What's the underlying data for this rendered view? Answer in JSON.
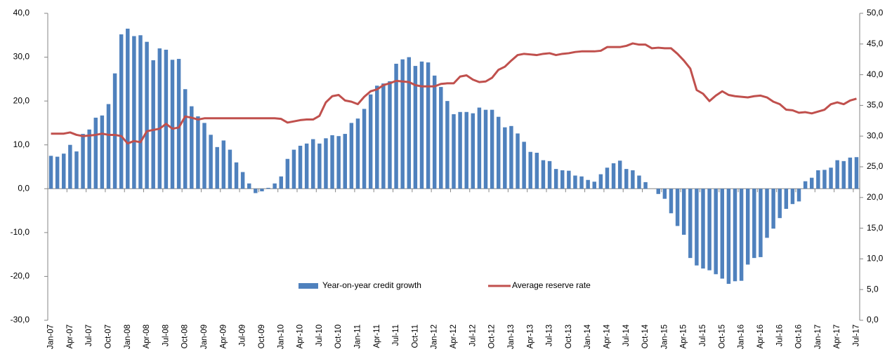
{
  "chart_data": {
    "type": "bar-line",
    "categories": [
      "Jan-07",
      null,
      null,
      "Apr-07",
      null,
      null,
      "Jul-07",
      null,
      null,
      "Oct-07",
      null,
      null,
      "Jan-08",
      null,
      null,
      "Apr-08",
      null,
      null,
      "Jul-08",
      null,
      null,
      "Oct-08",
      null,
      null,
      "Jan-09",
      null,
      null,
      "Apr-09",
      null,
      null,
      "Jul-09",
      null,
      null,
      "Oct-09",
      null,
      null,
      "Jan-10",
      null,
      null,
      "Apr-10",
      null,
      null,
      "Jul-10",
      null,
      null,
      "Oct-10",
      null,
      null,
      "Jan-11",
      null,
      null,
      "Apr-11",
      null,
      null,
      "Jul-11",
      null,
      null,
      "Oct-11",
      null,
      null,
      "Jan-12",
      null,
      null,
      "Apr-12",
      null,
      null,
      "Jul-12",
      null,
      null,
      "Oct-12",
      null,
      null,
      "Jan-13",
      null,
      null,
      "Apr-13",
      null,
      null,
      "Jul-13",
      null,
      null,
      "Oct-13",
      null,
      null,
      "Jan-14",
      null,
      null,
      "Apr-14",
      null,
      null,
      "Jul-14",
      null,
      null,
      "Oct-14",
      null,
      null,
      "Jan-15",
      null,
      null,
      "Apr-15",
      null,
      null,
      "Jul-15",
      null,
      null,
      "Oct-15",
      null,
      null,
      "Jan-16",
      null,
      null,
      "Apr-16",
      null,
      null,
      "Jul-16",
      null,
      null,
      "Oct-16",
      null,
      null,
      "Jan-17",
      null,
      null,
      "Apr-17",
      null,
      null,
      "Jul-17"
    ],
    "series": [
      {
        "name": "Year-on-year credit growth",
        "type": "bar",
        "color": "#4f81bd",
        "values": [
          7.5,
          7.3,
          8.0,
          10.0,
          8.5,
          12.5,
          13.5,
          16.2,
          16.7,
          19.3,
          26.3,
          35.2,
          36.5,
          34.8,
          35.0,
          33.5,
          29.3,
          32.0,
          31.7,
          29.4,
          29.6,
          22.7,
          18.8,
          16.5,
          15.0,
          12.3,
          9.5,
          11.0,
          8.9,
          6.0,
          3.8,
          1.2,
          -1.0,
          -0.6,
          0.2,
          1.2,
          2.8,
          6.8,
          8.9,
          9.8,
          10.3,
          11.3,
          10.3,
          11.5,
          12.2,
          12.0,
          12.5,
          15.0,
          16.0,
          18.2,
          21.5,
          23.5,
          24.0,
          24.5,
          28.5,
          29.5,
          30.0,
          28.0,
          29.0,
          28.8,
          25.8,
          23.2,
          20.0,
          17.0,
          17.5,
          17.5,
          17.2,
          18.5,
          18.0,
          18.0,
          16.4,
          14.0,
          14.3,
          12.6,
          10.7,
          8.4,
          8.2,
          6.5,
          6.3,
          4.5,
          4.2,
          4.1,
          3.0,
          2.8,
          2.0,
          1.6,
          3.3,
          4.8,
          5.8,
          6.4,
          4.5,
          4.2,
          3.0,
          1.5,
          0,
          -1.2,
          -2.3,
          -5.6,
          -8.5,
          -10.5,
          -15.8,
          -17.5,
          -18.2,
          -18.6,
          -19.5,
          -20.5,
          -21.7,
          -21.1,
          -21.0,
          -17.3,
          -15.8,
          -15.6,
          -11.2,
          -9.1,
          -6.7,
          -4.6,
          -3.5,
          -2.9,
          1.7,
          2.5,
          4.2,
          4.3,
          4.8,
          6.5,
          6.3,
          7.1,
          7.2
        ]
      },
      {
        "name": "Average reserve rate",
        "type": "line",
        "axis": "y2",
        "color": "#c0504d",
        "values": [
          30.4,
          30.4,
          30.4,
          30.6,
          30.2,
          30.0,
          30.1,
          30.2,
          30.4,
          30.2,
          30.2,
          30.0,
          28.8,
          29.2,
          29.0,
          30.8,
          31.0,
          31.2,
          32.0,
          31.2,
          31.4,
          33.2,
          33.0,
          32.7,
          32.9,
          32.9,
          32.9,
          32.9,
          32.9,
          32.9,
          32.9,
          32.9,
          32.9,
          32.9,
          32.9,
          32.9,
          32.8,
          32.2,
          32.4,
          32.6,
          32.7,
          32.7,
          33.3,
          35.5,
          36.5,
          36.7,
          35.8,
          35.6,
          35.2,
          36.4,
          37.3,
          37.6,
          38.3,
          38.6,
          39.0,
          38.9,
          38.8,
          38.3,
          38.1,
          38.1,
          38.1,
          38.5,
          38.6,
          38.6,
          39.7,
          39.9,
          39.2,
          38.8,
          38.9,
          39.5,
          40.8,
          41.3,
          42.3,
          43.2,
          43.4,
          43.3,
          43.2,
          43.4,
          43.5,
          43.2,
          43.4,
          43.5,
          43.7,
          43.8,
          43.8,
          43.8,
          43.9,
          44.5,
          44.5,
          44.5,
          44.7,
          45.1,
          44.9,
          44.9,
          44.3,
          44.4,
          44.3,
          44.3,
          43.4,
          42.3,
          41.0,
          37.5,
          36.9,
          35.7,
          36.6,
          37.3,
          36.7,
          36.5,
          36.4,
          36.3,
          36.5,
          36.6,
          36.3,
          35.6,
          35.2,
          34.3,
          34.2,
          33.8,
          33.9,
          33.7,
          34.0,
          34.3,
          35.2,
          35.5,
          35.2,
          35.8,
          36.1
        ]
      }
    ],
    "ylim": [
      -30,
      40
    ],
    "yticks": [
      {
        "value": -30,
        "label": "-30,0"
      },
      {
        "value": -20,
        "label": "-20,0"
      },
      {
        "value": -10,
        "label": "-10,0"
      },
      {
        "value": 0,
        "label": "0,0"
      },
      {
        "value": 10,
        "label": "10,0"
      },
      {
        "value": 20,
        "label": "20,0"
      },
      {
        "value": 30,
        "label": "30,0"
      },
      {
        "value": 40,
        "label": "40,0"
      }
    ],
    "y2lim": [
      0,
      50
    ],
    "y2ticks": [
      {
        "value": 0,
        "label": "0,0"
      },
      {
        "value": 5,
        "label": "5,0"
      },
      {
        "value": 10,
        "label": "10,0"
      },
      {
        "value": 15,
        "label": "15,0"
      },
      {
        "value": 20,
        "label": "20,0"
      },
      {
        "value": 25,
        "label": "25,0"
      },
      {
        "value": 30,
        "label": "30,0"
      },
      {
        "value": 35,
        "label": "35,0"
      },
      {
        "value": 40,
        "label": "40,0"
      },
      {
        "value": 45,
        "label": "45,0"
      },
      {
        "value": 50,
        "label": "50,0"
      }
    ],
    "legend": "bottom-center",
    "grid": false
  }
}
